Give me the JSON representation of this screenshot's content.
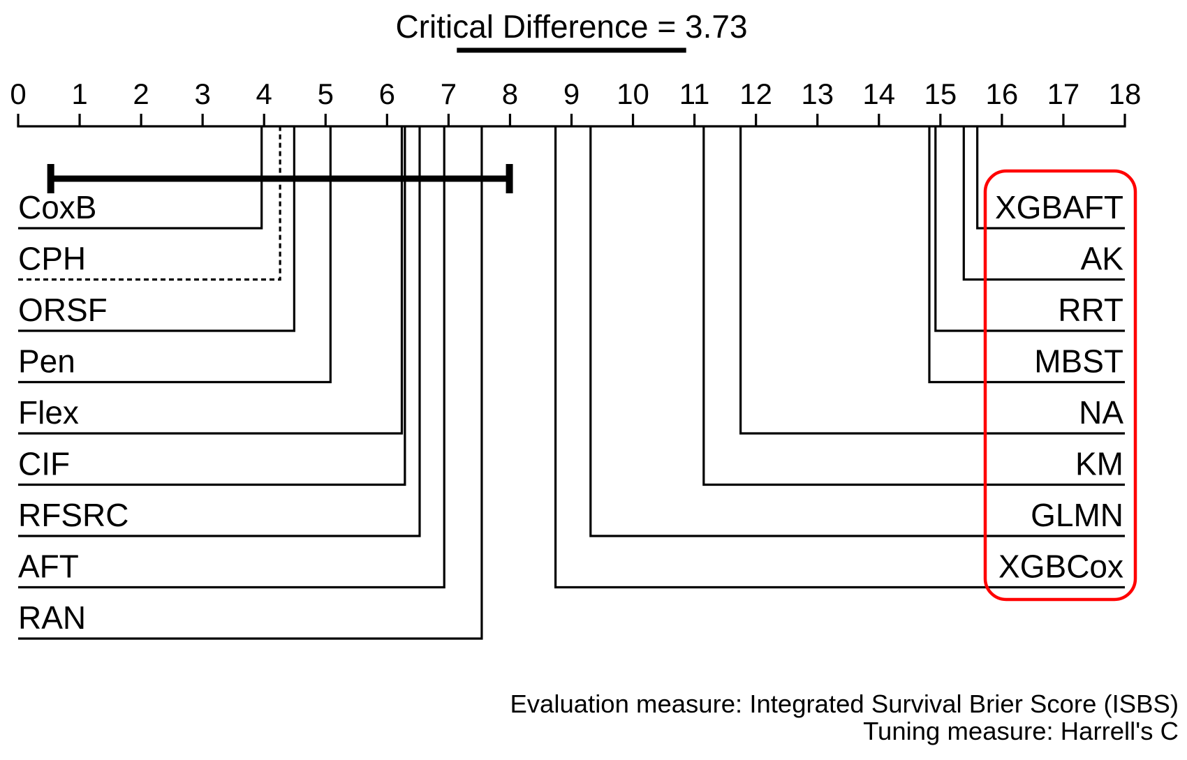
{
  "chart_data": {
    "type": "scatter",
    "title": "Critical Difference = 3.73",
    "critical_difference": 3.73,
    "xlim": [
      0,
      18
    ],
    "ticks": [
      "0",
      "1",
      "2",
      "3",
      "4",
      "5",
      "6",
      "7",
      "8",
      "9",
      "10",
      "11",
      "12",
      "13",
      "14",
      "15",
      "16",
      "17",
      "18"
    ],
    "learners": [
      {
        "name": "CoxB",
        "rank": 3.96
      },
      {
        "name": "CPH",
        "rank": 4.26,
        "dashed": true
      },
      {
        "name": "ORSF",
        "rank": 4.49
      },
      {
        "name": "Pen",
        "rank": 5.08
      },
      {
        "name": "Flex",
        "rank": 6.24
      },
      {
        "name": "CIF",
        "rank": 6.29
      },
      {
        "name": "RFSRC",
        "rank": 6.53
      },
      {
        "name": "AFT",
        "rank": 6.93
      },
      {
        "name": "RAN",
        "rank": 7.54
      },
      {
        "name": "XGBCox",
        "rank": 8.74
      },
      {
        "name": "GLMN",
        "rank": 9.31
      },
      {
        "name": "KM",
        "rank": 11.15
      },
      {
        "name": "NA",
        "rank": 11.75
      },
      {
        "name": "MBST",
        "rank": 14.82
      },
      {
        "name": "RRT",
        "rank": 14.92
      },
      {
        "name": "AK",
        "rank": 15.38
      },
      {
        "name": "XGBAFT",
        "rank": 15.6
      }
    ],
    "cd_interval": [
      0.53,
      7.99
    ],
    "highlight_color": "#ff0000",
    "annotations": [
      "Evaluation measure: Integrated Survival Brier Score (ISBS)",
      "Tuning measure: Harrell's C"
    ]
  }
}
